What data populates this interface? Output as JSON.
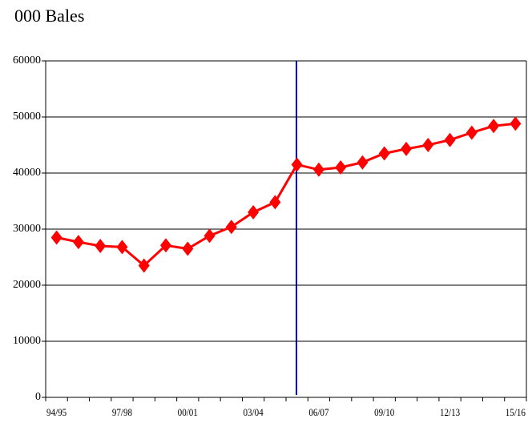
{
  "chart_data": {
    "type": "line",
    "title": "000 Bales",
    "categories": [
      "94/95",
      null,
      null,
      "97/98",
      null,
      null,
      "00/01",
      null,
      null,
      "03/04",
      null,
      null,
      "06/07",
      null,
      null,
      "09/10",
      null,
      null,
      "12/13",
      null,
      null,
      "15/16"
    ],
    "values": [
      28500,
      27700,
      27000,
      26800,
      23500,
      27100,
      26500,
      28800,
      30400,
      33000,
      34800,
      41500,
      40600,
      41000,
      41900,
      43500,
      44300,
      45000,
      45900,
      47200,
      48400,
      48800
    ],
    "color": "#ff0000",
    "ylim": [
      0,
      60000
    ],
    "yticks": [
      0,
      10000,
      20000,
      30000,
      40000,
      50000,
      60000
    ],
    "grid": true
  }
}
